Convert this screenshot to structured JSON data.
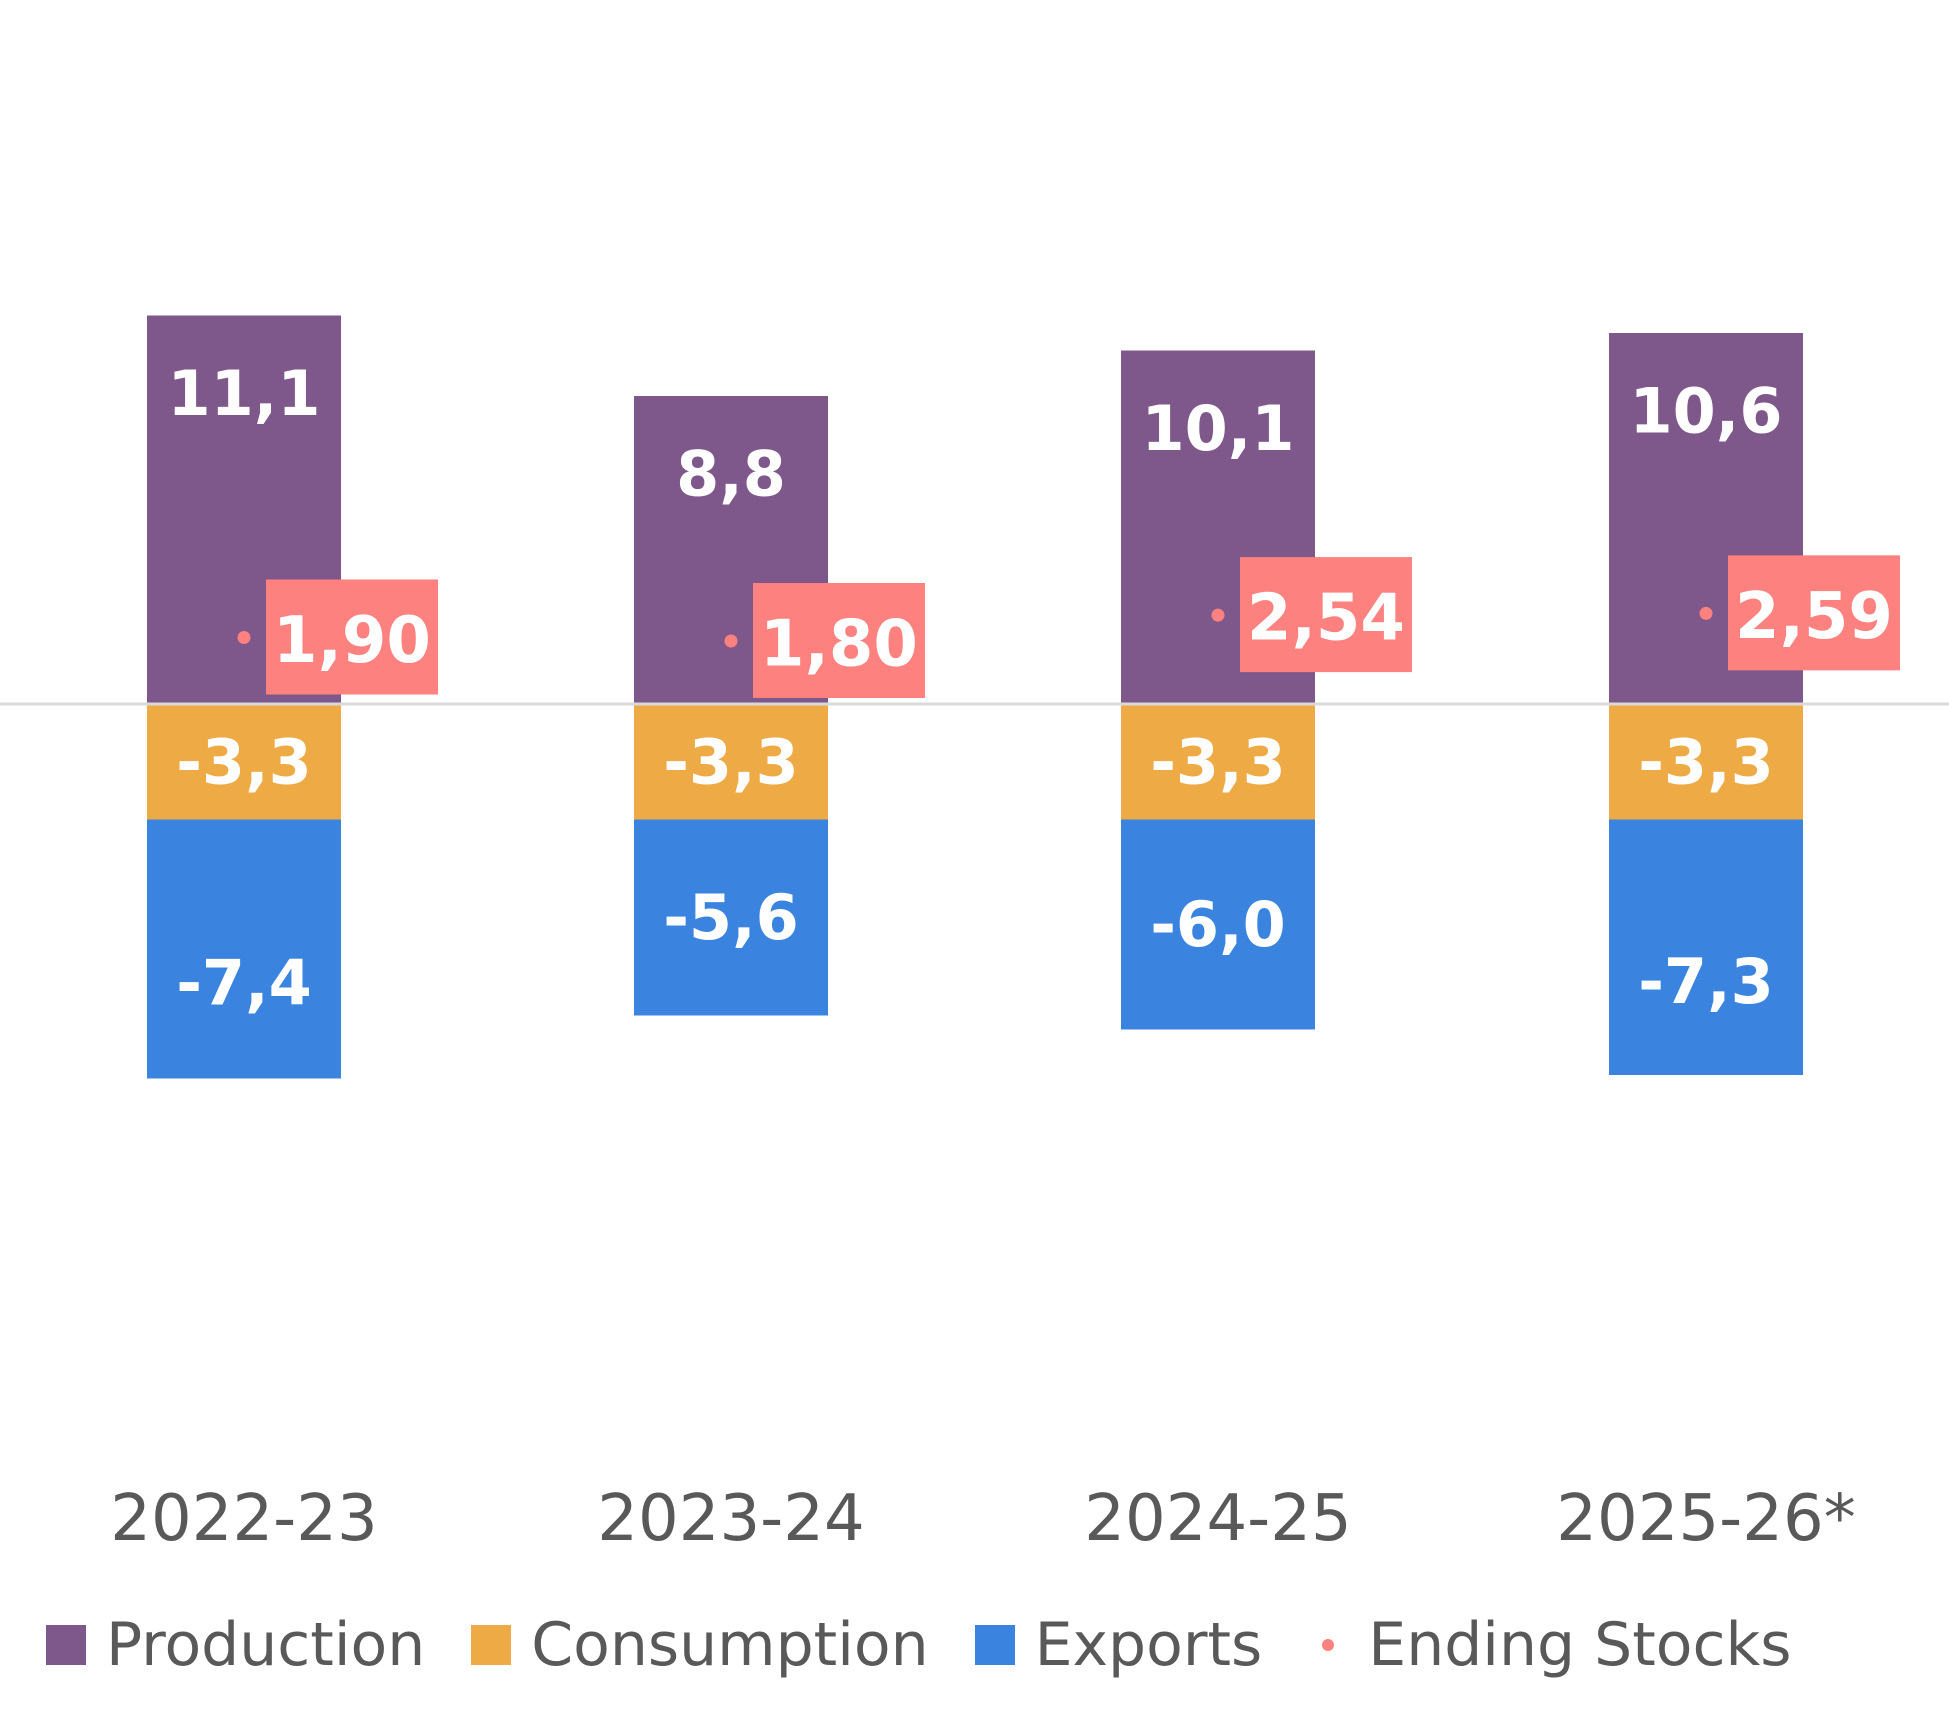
{
  "chart_data": {
    "type": "bar",
    "stacked": true,
    "title": "",
    "xlabel": "",
    "ylabel": "",
    "categories": [
      "2022-23",
      "2023-24",
      "2024-25",
      "2025-26*"
    ],
    "series": [
      {
        "name": "Production",
        "color": "#7E588A",
        "values": [
          11.1,
          8.8,
          10.1,
          10.6
        ],
        "labels": [
          "11,1",
          "8,8",
          "10,1",
          "10,6"
        ]
      },
      {
        "name": "Consumption",
        "color": "#EDAA45",
        "values": [
          -3.3,
          -3.3,
          -3.3,
          -3.3
        ],
        "labels": [
          "-3,3",
          "-3,3",
          "-3,3",
          "-3,3"
        ]
      },
      {
        "name": "Exports",
        "color": "#3A84DF",
        "values": [
          -7.4,
          -5.6,
          -6.0,
          -7.3
        ],
        "labels": [
          "-7,4",
          "-5,6",
          "-6,0",
          "-7,3"
        ]
      }
    ],
    "markers": {
      "name": "Ending Stocks",
      "type": "scatter",
      "color": "#FD817E",
      "values": [
        1.9,
        1.8,
        2.54,
        2.59
      ],
      "labels": [
        "1,90",
        "1,80",
        "2,54",
        "2,59"
      ]
    },
    "ylim": [
      -13,
      18
    ],
    "grid": false,
    "zero_line": true,
    "legend_position": "bottom"
  },
  "legend": [
    {
      "label": "Production",
      "color": "#7E588A",
      "shape": "square"
    },
    {
      "label": "Consumption",
      "color": "#EDAA45",
      "shape": "square"
    },
    {
      "label": "Exports",
      "color": "#3A84DF",
      "shape": "square"
    },
    {
      "label": "Ending Stocks",
      "color": "#FD817E",
      "shape": "dot"
    }
  ]
}
